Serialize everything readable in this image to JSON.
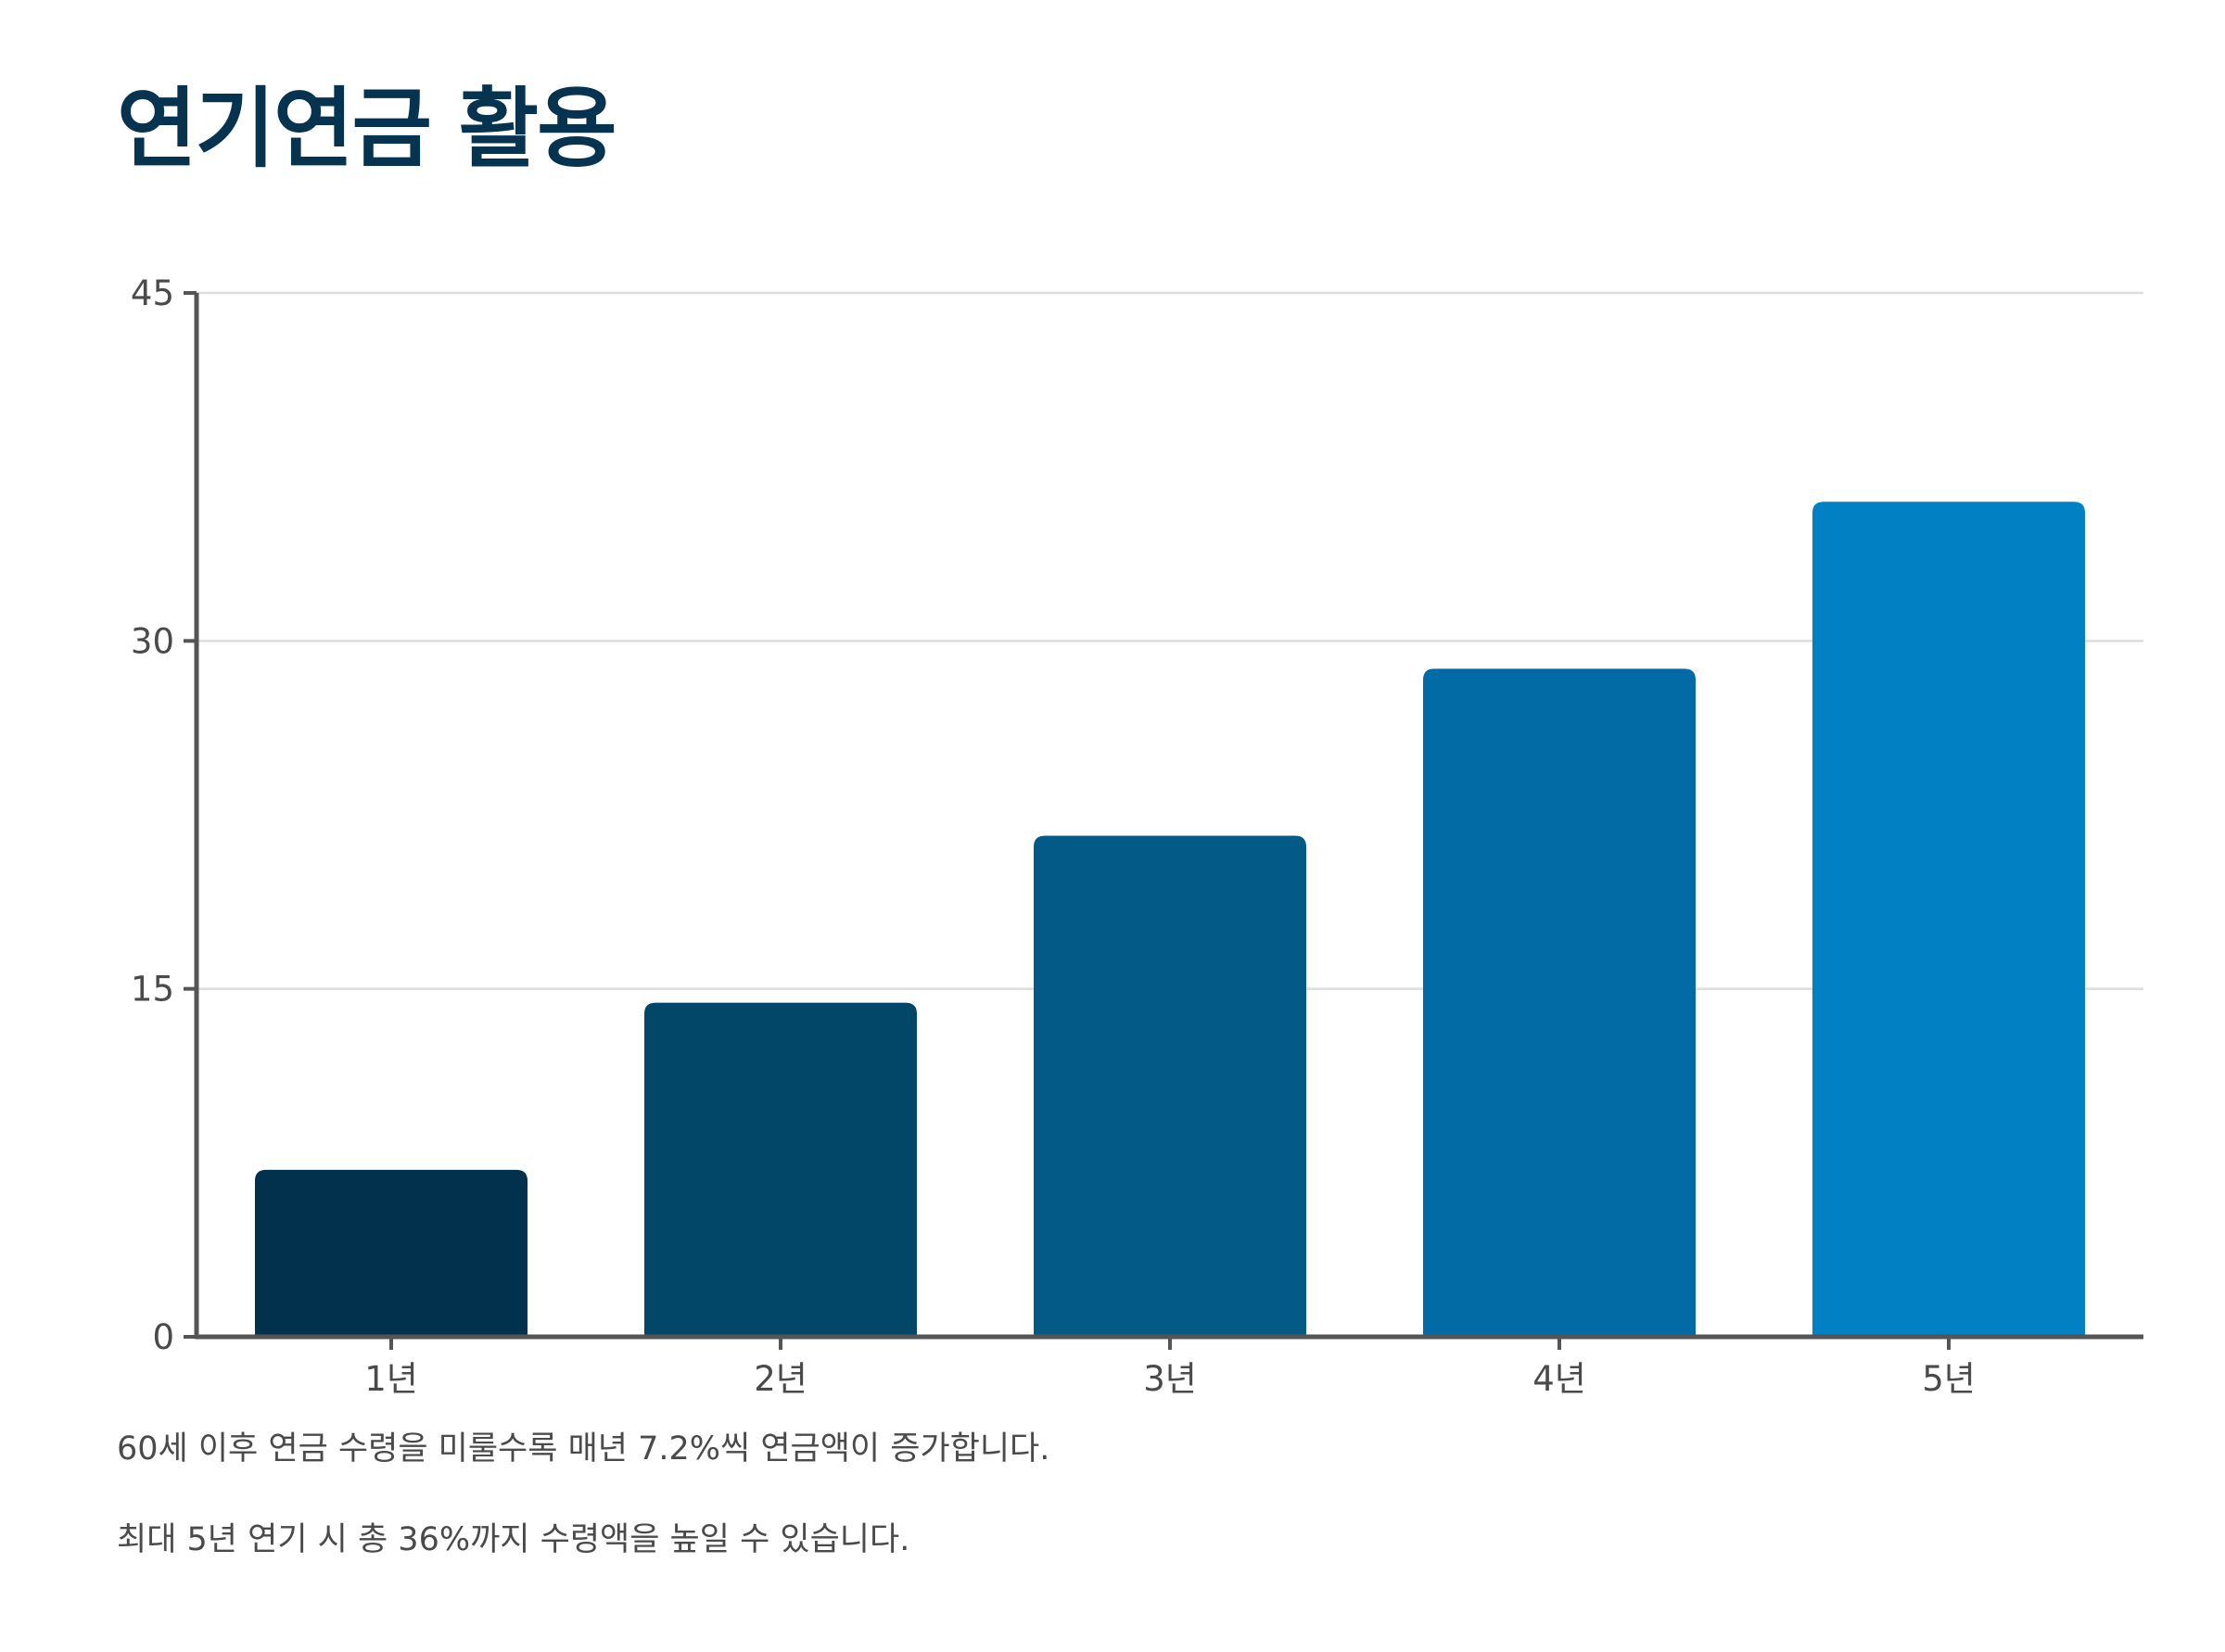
{
  "title": "연기연금 활용",
  "captions": [
    "60세 이후 연금 수령을 미룰수록 매년 7.2%씩 연금액이 증가합니다.",
    "최대 5년 연기 시 총 36%까지 수령액을 높일 수 있습니다."
  ],
  "chart_data": {
    "type": "bar",
    "title": "",
    "xlabel": "",
    "ylabel": "",
    "categories": [
      "1년",
      "2년",
      "3년",
      "4년",
      "5년"
    ],
    "values": [
      7.2,
      14.4,
      21.6,
      28.8,
      36
    ],
    "ylim": [
      0,
      45
    ],
    "yticks": [
      0,
      15,
      30,
      45
    ],
    "grid": true,
    "legend": "none",
    "colors": [
      "#02314d",
      "#034768",
      "#035a87",
      "#026ba6",
      "#0180c4"
    ],
    "axis_color": "#555555",
    "grid_color": "#dddddd"
  }
}
